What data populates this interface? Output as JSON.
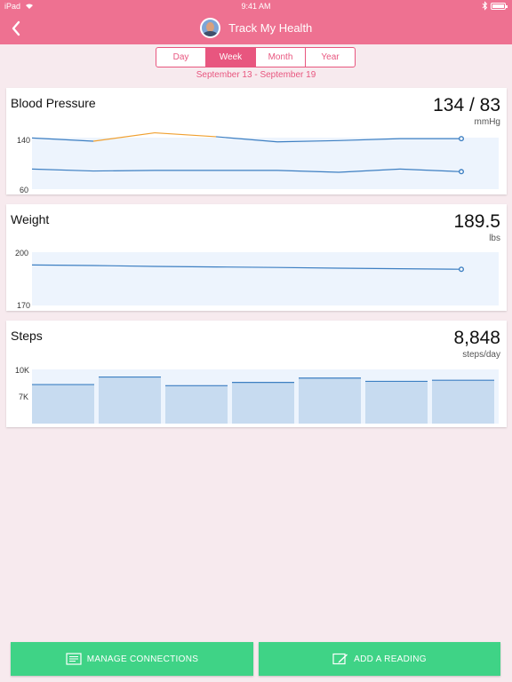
{
  "status_bar": {
    "device": "iPad",
    "time": "9:41 AM"
  },
  "nav": {
    "title": "Track My Health"
  },
  "period_tabs": [
    {
      "label": "Day",
      "active": false
    },
    {
      "label": "Week",
      "active": true
    },
    {
      "label": "Month",
      "active": false
    },
    {
      "label": "Year",
      "active": false
    }
  ],
  "date_range": "September 13 - September 19",
  "colors": {
    "accent": "#ee7191",
    "tab": "#e8567f",
    "line": "#3d7fc2",
    "highlight": "#f0a030",
    "plot_bg": "#edf4fd",
    "bar_fill": "#c7dbf0",
    "button": "#3fd386"
  },
  "cards": {
    "blood_pressure": {
      "title": "Blood Pressure",
      "value": "134 / 83",
      "unit": "mmHg",
      "y_top_label": "140",
      "y_bottom_label": "60"
    },
    "weight": {
      "title": "Weight",
      "value": "189.5",
      "unit": "lbs",
      "y_top_label": "200",
      "y_bottom_label": "170"
    },
    "steps": {
      "title": "Steps",
      "value": "8,848",
      "unit": "steps/day",
      "y_top_label": "10K",
      "y_mid_label": "7K"
    }
  },
  "chart_data": [
    {
      "type": "line",
      "title": "Blood Pressure",
      "ylim": [
        60,
        145
      ],
      "series": [
        {
          "values": [
            139,
            134,
            147,
            141,
            133,
            135,
            138,
            138
          ],
          "highlight_segment": [
            1,
            3
          ]
        },
        {
          "values": [
            91,
            88,
            89,
            89,
            89,
            86,
            91,
            87
          ]
        }
      ]
    },
    {
      "type": "line",
      "title": "Weight",
      "ylim": [
        170,
        200
      ],
      "series": [
        {
          "values": [
            192.8,
            192.5,
            192.0,
            191.7,
            191.4,
            191.0,
            190.7,
            190.4
          ]
        }
      ]
    },
    {
      "type": "bar",
      "title": "Steps",
      "ylim": [
        5000,
        10000
      ],
      "values": [
        8600,
        9300,
        8500,
        8800,
        9200,
        8900,
        9000
      ]
    }
  ],
  "buttons": {
    "manage_connections": "MANAGE CONNECTIONS",
    "add_reading": "ADD A READING"
  }
}
